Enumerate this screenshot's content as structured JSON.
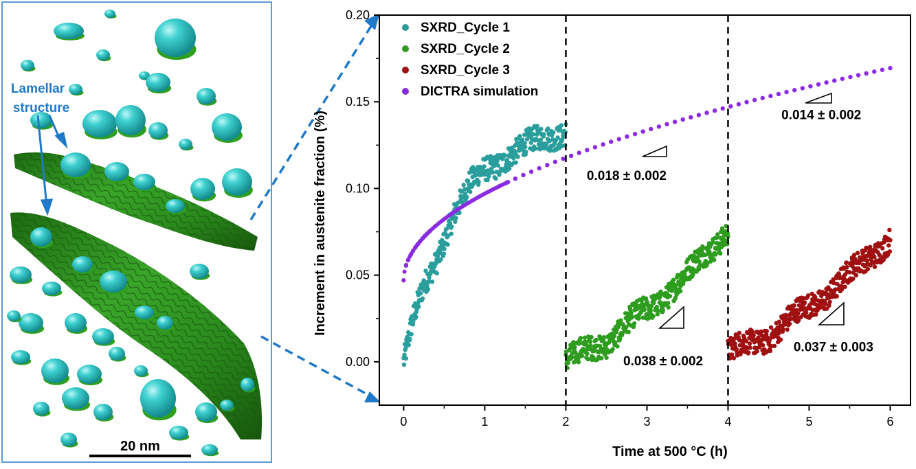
{
  "apt_image": {
    "label_line1": "Lamellar",
    "label_line2": "structure",
    "scale_bar_label": "20 nm",
    "colors": {
      "precipitate": "#3cc8c8",
      "lamella": "#2e8b1f",
      "frame": "#5b9bd5",
      "label": "#1f78c8"
    }
  },
  "chart_data": {
    "type": "scatter",
    "xlabel": "Time at 500 °C (h)",
    "ylabel": "Increment in austenite fraction (%)",
    "xlim": [
      -0.3,
      6.25
    ],
    "ylim": [
      -0.025,
      0.2
    ],
    "xticks": [
      0,
      1,
      2,
      3,
      4,
      5,
      6
    ],
    "yticks": [
      "0.00",
      "0.05",
      "0.10",
      "0.15",
      "0.20"
    ],
    "vlines": [
      2,
      4
    ],
    "legend_position": "top-left",
    "series": [
      {
        "name": "SXRD_Cycle 1",
        "color": "#2a9d9d",
        "x_range": [
          0,
          2
        ],
        "points": 420,
        "trend": [
          [
            0,
            0.0
          ],
          [
            0.1,
            0.02
          ],
          [
            0.25,
            0.042
          ],
          [
            0.4,
            0.058
          ],
          [
            0.6,
            0.085
          ],
          [
            0.8,
            0.1
          ],
          [
            1.0,
            0.11
          ],
          [
            1.3,
            0.12
          ],
          [
            1.6,
            0.126
          ],
          [
            2.0,
            0.134
          ]
        ]
      },
      {
        "name": "SXRD_Cycle 2",
        "color": "#2e9c1e",
        "x_range": [
          2,
          4
        ],
        "points": 420,
        "trend": [
          [
            2.0,
            0.0
          ],
          [
            2.5,
            0.012
          ],
          [
            3.0,
            0.03
          ],
          [
            3.5,
            0.05
          ],
          [
            4.0,
            0.077
          ]
        ]
      },
      {
        "name": "SXRD_Cycle 3",
        "color": "#a01010",
        "x_range": [
          4,
          6
        ],
        "points": 420,
        "trend": [
          [
            4.0,
            0.005
          ],
          [
            4.5,
            0.015
          ],
          [
            5.0,
            0.032
          ],
          [
            5.5,
            0.05
          ],
          [
            6.0,
            0.072
          ]
        ]
      },
      {
        "name": "DICTRA simulation",
        "color": "#8a2be2",
        "x_range": [
          0,
          6
        ],
        "points": 62,
        "simulation": true
      }
    ],
    "annotations": [
      {
        "text": "0.018 ± 0.002",
        "x": 2.75,
        "y": 0.105
      },
      {
        "text": "0.014 ± 0.002",
        "x": 5.15,
        "y": 0.14
      },
      {
        "text": "0.038 ± 0.002",
        "x": 3.2,
        "y": -0.002
      },
      {
        "text": "0.037 ± 0.003",
        "x": 5.3,
        "y": 0.006
      }
    ]
  }
}
